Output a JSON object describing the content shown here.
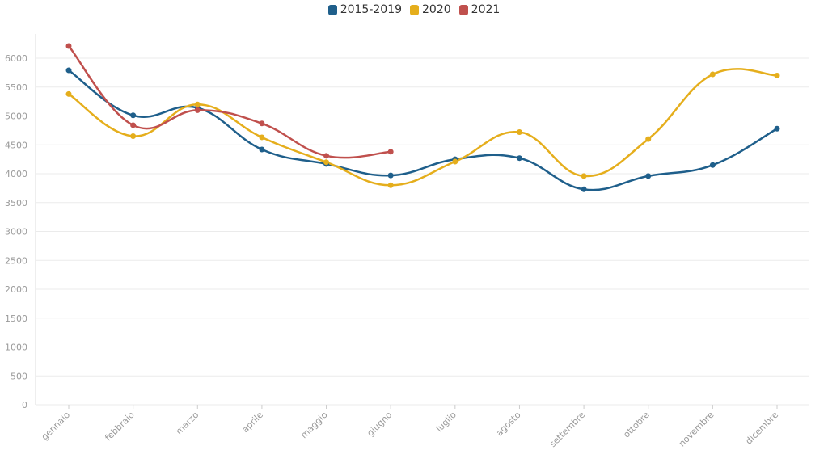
{
  "chart_data": {
    "type": "line",
    "categories": [
      "gennaio",
      "febbraio",
      "marzo",
      "aprile",
      "maggio",
      "giugno",
      "luglio",
      "agosto",
      "settembre",
      "ottobre",
      "novembre",
      "dicembre"
    ],
    "ylim": [
      0,
      6000
    ],
    "yticks": [
      "0",
      "500",
      "1000",
      "1500",
      "2000",
      "2500",
      "3000",
      "3500",
      "4000",
      "4500",
      "5000",
      "5500",
      "6000"
    ],
    "grid": true,
    "legend_position": "top-center",
    "series": [
      {
        "name": "2015-2019",
        "color": "#1f5f8b",
        "values": [
          5790,
          5010,
          5140,
          4420,
          4170,
          3970,
          4250,
          4270,
          3730,
          3960,
          4150,
          4780
        ]
      },
      {
        "name": "2020",
        "color": "#e5ae1c",
        "values": [
          5380,
          4650,
          5200,
          4630,
          4200,
          3800,
          4210,
          4720,
          3960,
          4600,
          5720,
          5700
        ]
      },
      {
        "name": "2021",
        "color": "#c0504d",
        "values": [
          6210,
          4840,
          5100,
          4870,
          4310,
          4380,
          null,
          null,
          null,
          null,
          null,
          null
        ]
      }
    ]
  }
}
